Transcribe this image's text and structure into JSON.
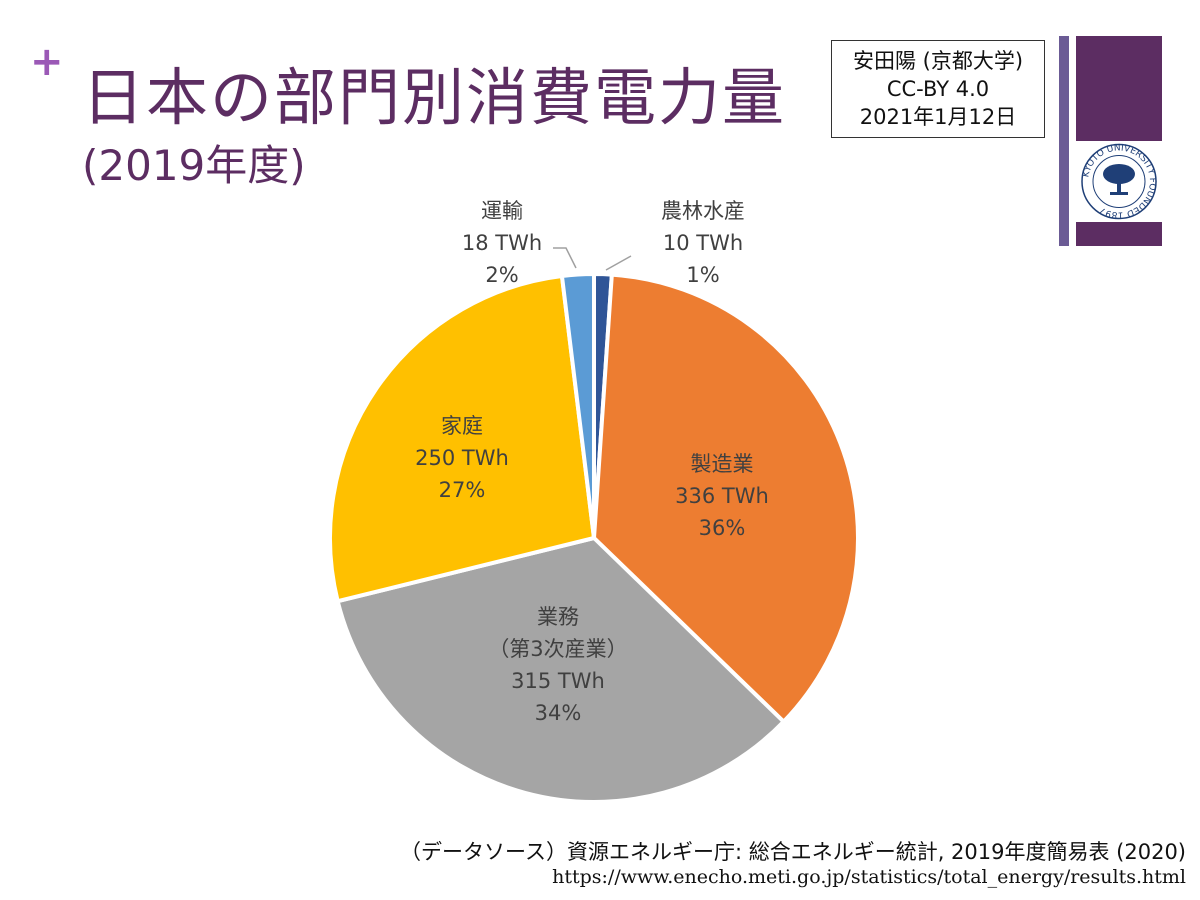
{
  "slide": {
    "title": "日本の部門別消費電力量",
    "subtitle": "(2019年度)",
    "credit": [
      "安田陽 (京都大学)",
      "CC-BY 4.0",
      "2021年1月12日"
    ],
    "source": "（データソース）資源エネルギー庁: 総合エネルギー統計, 2019年度簡易表 (2020)",
    "url": "https://www.enecho.meti.go.jp/statistics/total_energy/results.html",
    "logo_text": "KYOTO UNIVERSITY FOUNDED 1897"
  },
  "chart_data": {
    "type": "pie",
    "unit": "TWh",
    "slices": [
      {
        "label": "農林水産",
        "value": 10,
        "value_label": "10 TWh",
        "percent": "1%",
        "color": "#2f5597"
      },
      {
        "label": "製造業",
        "value": 336,
        "value_label": "336 TWh",
        "percent": "36%",
        "color": "#ed7d31"
      },
      {
        "label": "業務\n（第3次産業）",
        "value": 315,
        "value_label": "315 TWh",
        "percent": "34%",
        "color": "#a5a5a5"
      },
      {
        "label": "家庭",
        "value": 250,
        "value_label": "250 TWh",
        "percent": "27%",
        "color": "#ffc000"
      },
      {
        "label": "運輸",
        "value": 18,
        "value_label": "18 TWh",
        "percent": "2%",
        "color": "#5b9bd5"
      }
    ]
  }
}
